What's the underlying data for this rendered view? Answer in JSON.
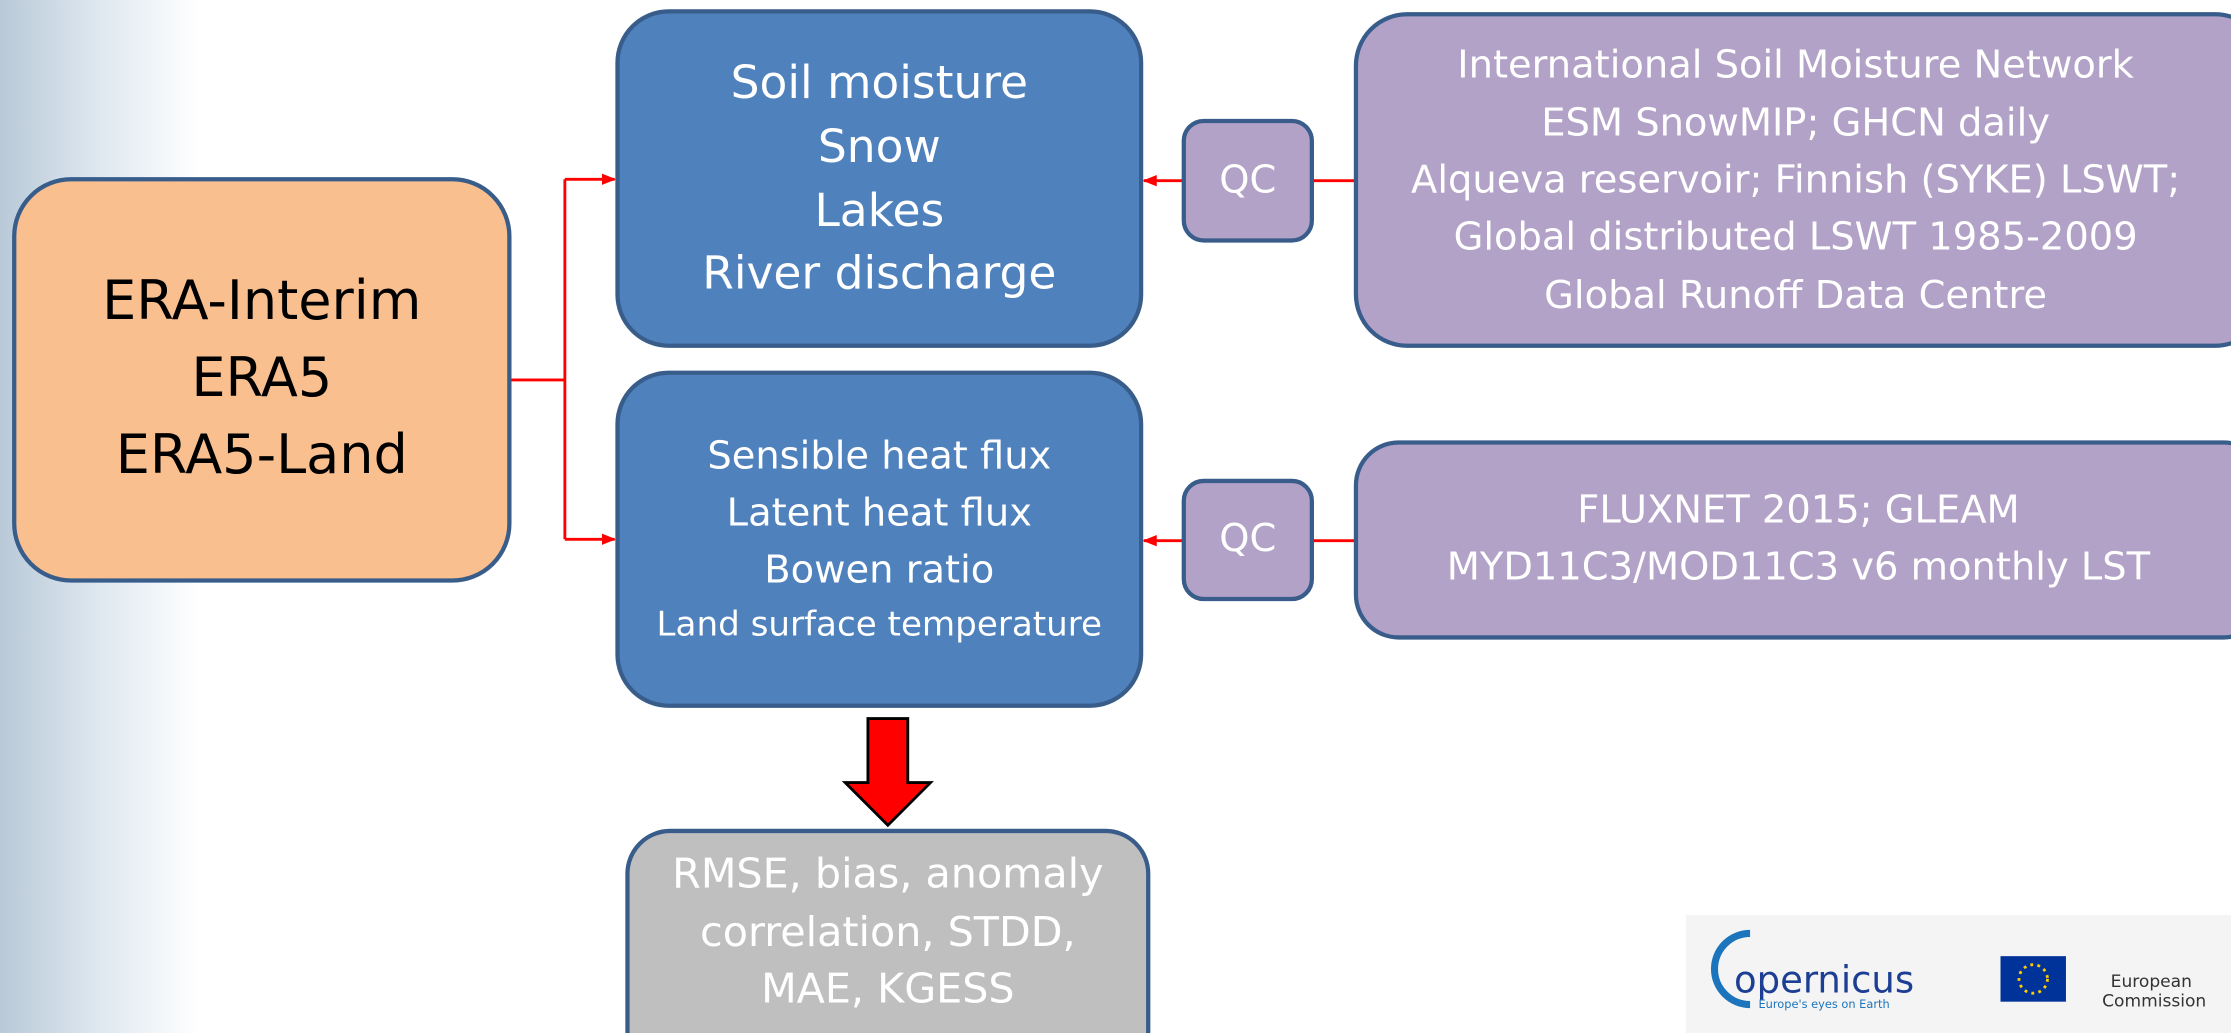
{
  "sources": {
    "lines": [
      "ERA-Interim",
      "ERA5",
      "ERA5-Land"
    ]
  },
  "variables_1": {
    "lines": [
      "Soil moisture",
      "Snow",
      "Lakes",
      "River discharge"
    ]
  },
  "variables_2": {
    "lines": [
      "Sensible heat flux",
      "Latent heat flux",
      "Bowen ratio",
      "Land surface temperature"
    ]
  },
  "qc_1": {
    "label": "QC"
  },
  "qc_2": {
    "label": "QC"
  },
  "observations_1": {
    "lines": [
      "International Soil Moisture Network",
      "ESM SnowMIP; GHCN daily",
      "Alqueva reservoir; Finnish (SYKE) LSWT;",
      "Global distributed LSWT 1985-2009",
      "Global Runoff Data Centre"
    ]
  },
  "observations_2": {
    "lines": [
      "FLUXNET 2015; GLEAM",
      "MYD11C3/MOD11C3 v6 monthly LST"
    ]
  },
  "metrics": {
    "lines": [
      "RMSE, bias, anomaly",
      "correlation, STDD,",
      "MAE, KGESS"
    ]
  },
  "logos": {
    "copernicus": {
      "name": "opernicus",
      "tagline": "Europe's eyes on Earth"
    },
    "commission": [
      "European",
      "Commission"
    ]
  }
}
